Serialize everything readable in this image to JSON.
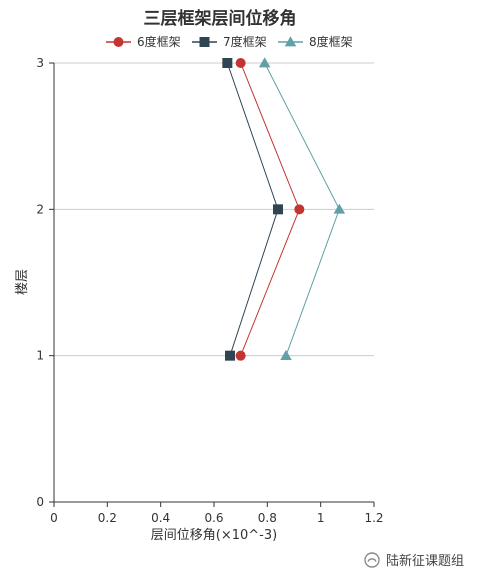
{
  "chart_data": {
    "type": "line",
    "title": "三层框架层间位移角",
    "xlabel": "层间位移角(×10^-3)",
    "ylabel": "楼层",
    "xlim": [
      0,
      1.2
    ],
    "ylim": [
      0,
      3
    ],
    "x_ticks": [
      "0",
      "0.2",
      "0.4",
      "0.6",
      "0.8",
      "1",
      "1.2"
    ],
    "y_ticks": [
      "0",
      "1",
      "2",
      "3"
    ],
    "grid": "horizontal",
    "legend_position": "top",
    "series": [
      {
        "name": "6度框架",
        "color": "#c23531",
        "marker": "circle",
        "points": [
          {
            "x": 0.7,
            "y": 1
          },
          {
            "x": 0.92,
            "y": 2
          },
          {
            "x": 0.7,
            "y": 3
          }
        ]
      },
      {
        "name": "7度框架",
        "color": "#2f4554",
        "marker": "square",
        "points": [
          {
            "x": 0.66,
            "y": 1
          },
          {
            "x": 0.84,
            "y": 2
          },
          {
            "x": 0.65,
            "y": 3
          }
        ]
      },
      {
        "name": "8度框架",
        "color": "#61a0a8",
        "marker": "triangle",
        "points": [
          {
            "x": 0.87,
            "y": 1
          },
          {
            "x": 1.07,
            "y": 2
          },
          {
            "x": 0.79,
            "y": 3
          }
        ]
      }
    ]
  },
  "watermark": {
    "text": "陆新征课题组",
    "icon": "wechat-official-account-icon"
  }
}
